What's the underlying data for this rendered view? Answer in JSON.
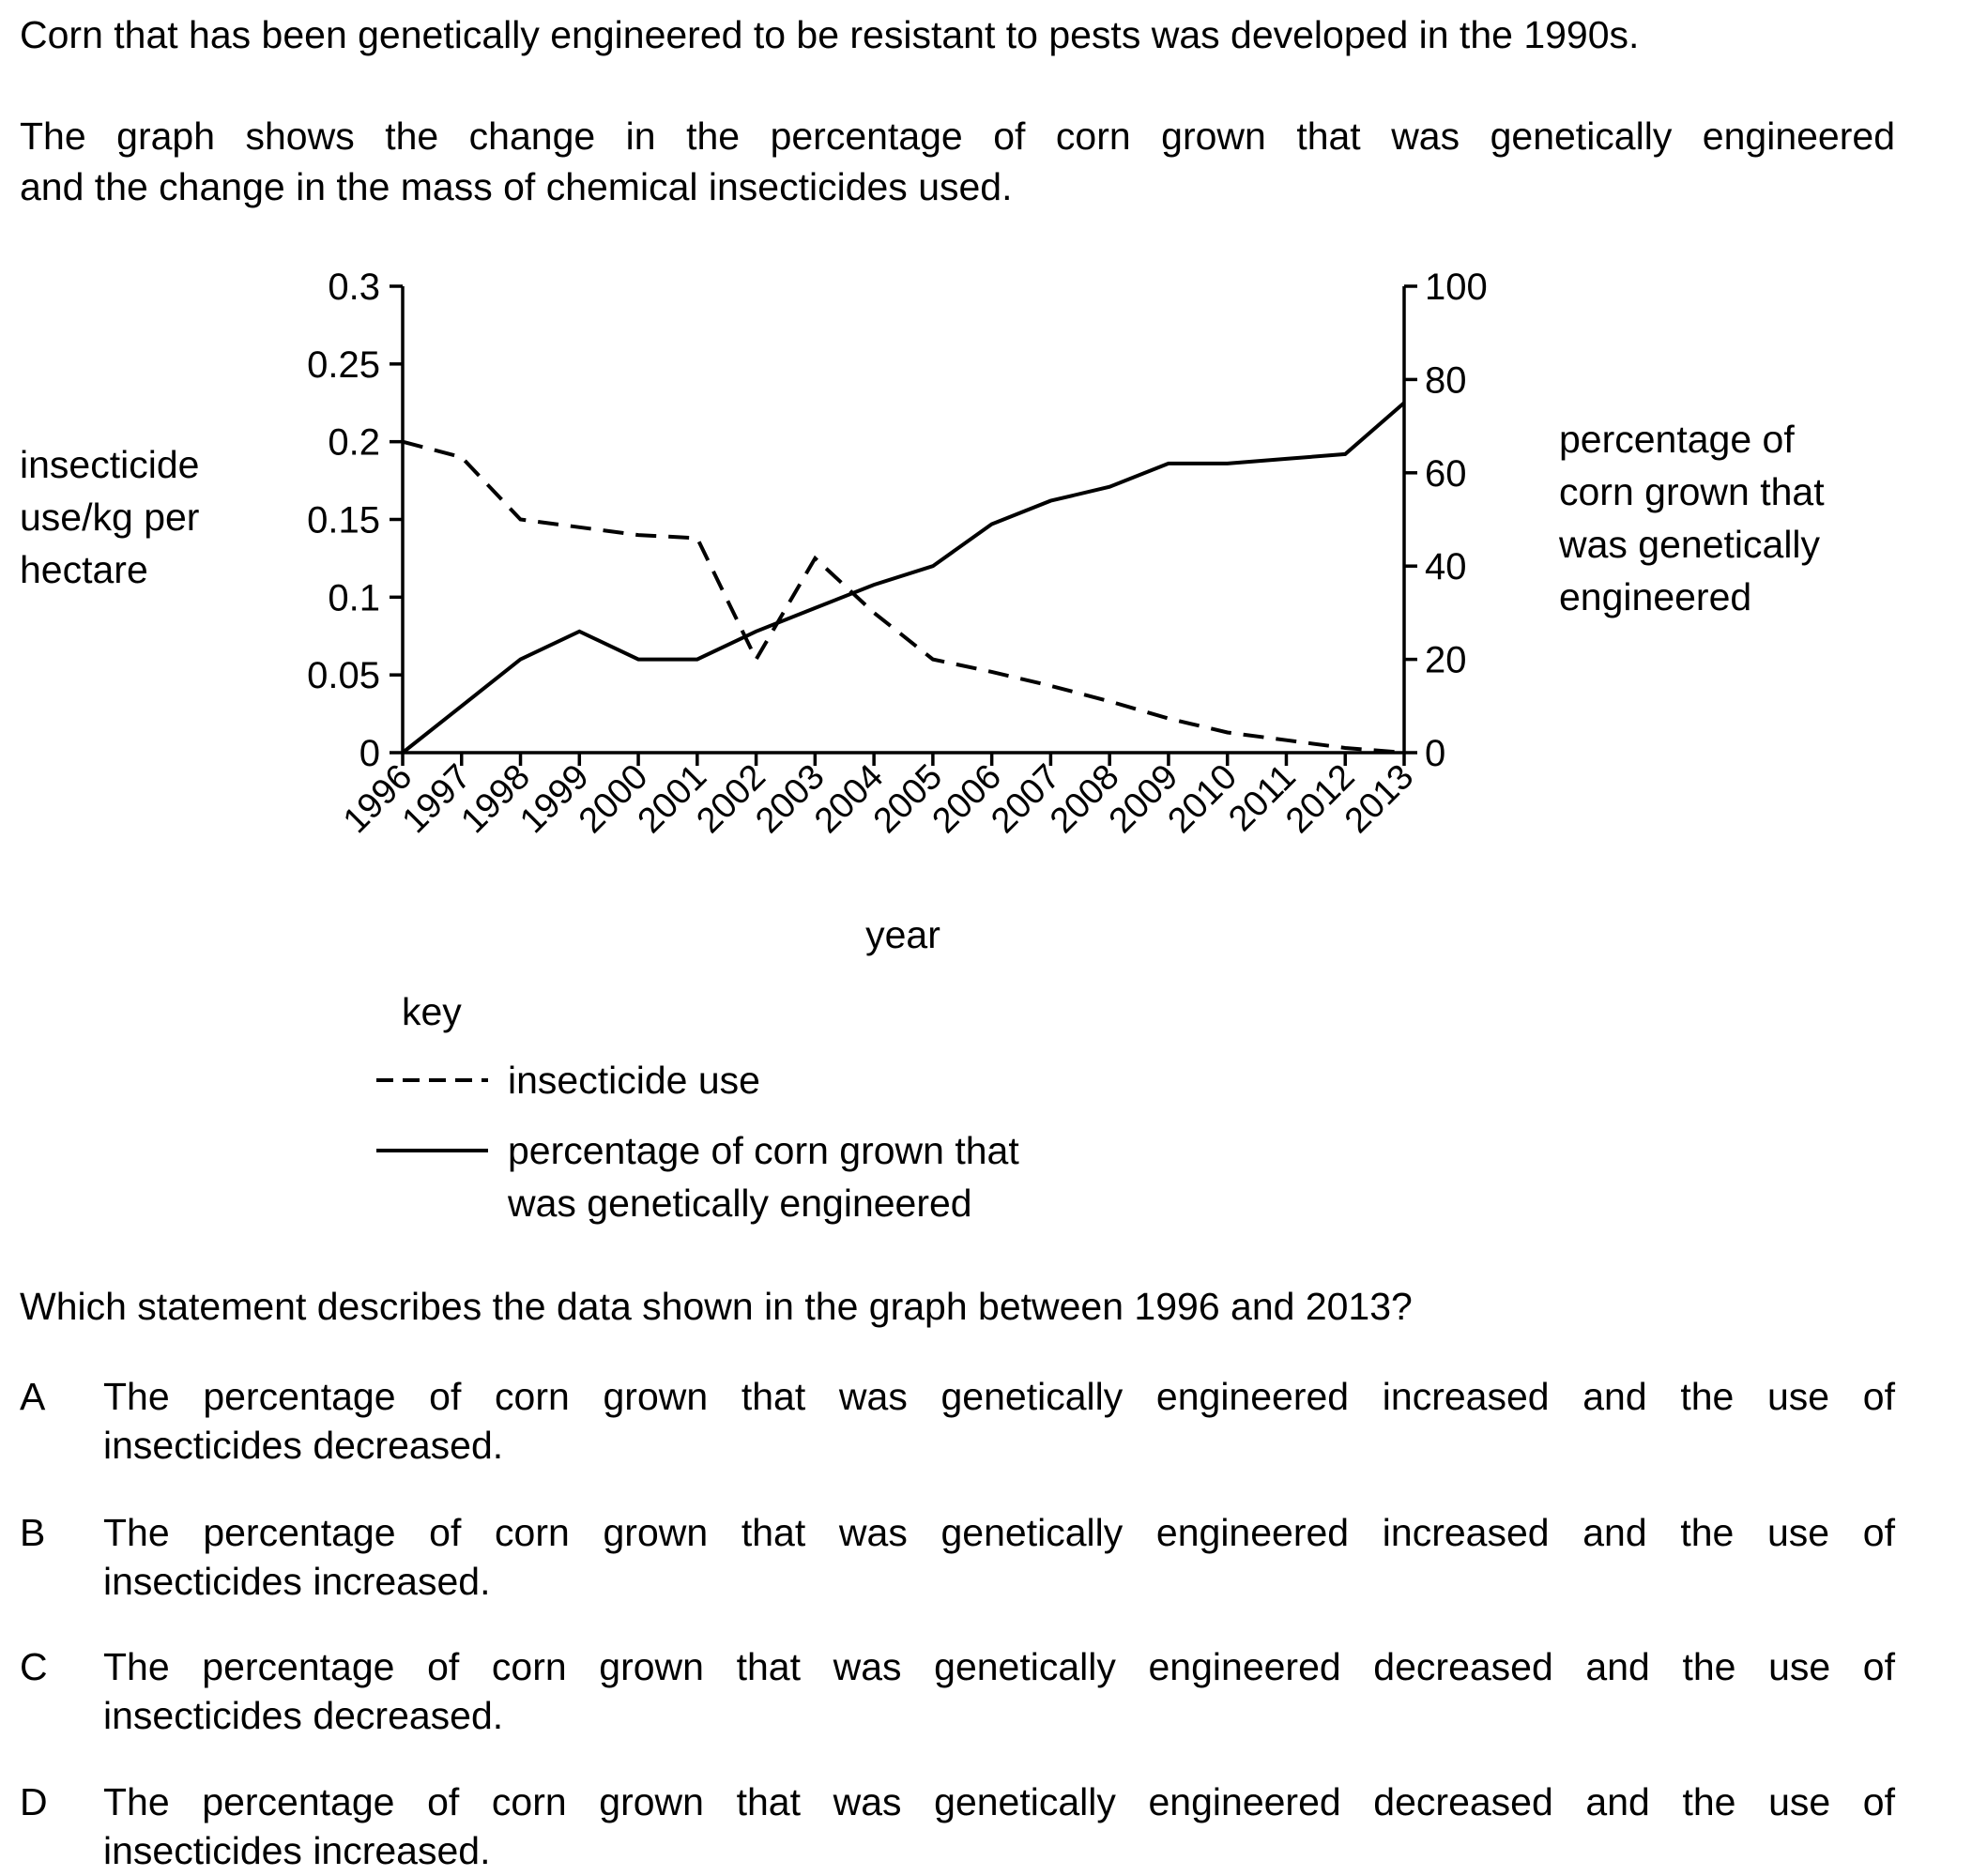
{
  "intro": {
    "sentence1": "Corn that has been genetically engineered to be resistant to pests was developed in the 1990s.",
    "sentence2_line1": "The graph shows the change in the percentage of corn grown that was genetically engineered",
    "sentence2_line2": "and the change in the mass of chemical insecticides used."
  },
  "chart_data": {
    "type": "line",
    "x": [
      1996,
      1997,
      1998,
      1999,
      2000,
      2001,
      2002,
      2003,
      2004,
      2005,
      2006,
      2007,
      2008,
      2009,
      2010,
      2011,
      2012,
      2013
    ],
    "xlabel": "year",
    "ylabel_left_lines": [
      "insecticide",
      "use/kg per",
      "hectare"
    ],
    "ylabel_right_lines": [
      "percentage of",
      "corn grown that",
      "was genetically",
      "engineered"
    ],
    "ylim_left": [
      0,
      0.3
    ],
    "ylim_right": [
      0,
      100
    ],
    "yticks_left": [
      "0",
      "0.05",
      "0.1",
      "0.15",
      "0.2",
      "0.25",
      "0.3"
    ],
    "yticks_right": [
      "0",
      "20",
      "40",
      "60",
      "80",
      "100"
    ],
    "grid": false,
    "series": [
      {
        "name": "insecticide use",
        "axis": "left",
        "style": "dashed",
        "values": [
          0.2,
          0.19,
          0.15,
          0.145,
          0.14,
          0.138,
          0.06,
          0.125,
          0.09,
          0.06,
          0.052,
          0.043,
          0.033,
          0.022,
          0.013,
          0.008,
          0.003,
          0.0
        ]
      },
      {
        "name": "percentage of corn grown that was genetically engineered",
        "axis": "right",
        "style": "solid",
        "values": [
          0,
          10,
          20,
          26,
          20,
          20,
          26,
          31,
          36,
          40,
          49,
          54,
          57,
          62,
          62,
          63,
          64,
          75
        ]
      }
    ],
    "legend": {
      "title": "key",
      "position": "below",
      "entries": [
        {
          "style": "dashed",
          "lines": [
            "insecticide use"
          ]
        },
        {
          "style": "solid",
          "lines": [
            "percentage of corn grown that",
            "was genetically engineered"
          ]
        }
      ]
    }
  },
  "question": {
    "prompt": "Which statement describes the data shown in the graph between 1996 and 2013?",
    "options": [
      {
        "letter": "A",
        "line1": "The percentage of corn grown that was genetically engineered increased and the use of",
        "line2": "insecticides decreased."
      },
      {
        "letter": "B",
        "line1": "The percentage of corn grown that was genetically engineered increased and the use of",
        "line2": "insecticides increased."
      },
      {
        "letter": "C",
        "line1": "The percentage of corn grown that was genetically engineered decreased and the use of",
        "line2": "insecticides decreased."
      },
      {
        "letter": "D",
        "line1": "The percentage of corn grown that was genetically engineered decreased and the use of",
        "line2": "insecticides increased."
      }
    ]
  }
}
